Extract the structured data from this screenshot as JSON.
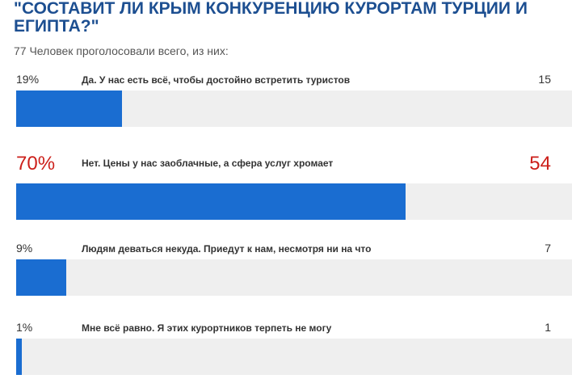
{
  "poll": {
    "question": "\"СОСТАВИТ ЛИ КРЫМ КОНКУРЕНЦИЮ КУРОРТАМ ТУРЦИИ И ЕГИПТА?\"",
    "total": "77 Человек проголосовали всего, из них:",
    "accent_color": "#1a6dd1",
    "winner_color": "#cc1f1a",
    "options": [
      {
        "percent": "19%",
        "label": "Да. У нас есть всё, чтобы достойно встретить туристов",
        "count": "15",
        "share": 0.19
      },
      {
        "percent": "70%",
        "label": "Нет. Цены у нас заоблачные, а сфера услуг хромает",
        "count": "54",
        "share": 0.7
      },
      {
        "percent": "9%",
        "label": "Людям деваться некуда. Приедут к нам, несмотря ни на что",
        "count": "7",
        "share": 0.09
      },
      {
        "percent": "1%",
        "label": "Мне всё равно. Я этих курортников терпеть не могу",
        "count": "1",
        "share": 0.01
      }
    ]
  }
}
